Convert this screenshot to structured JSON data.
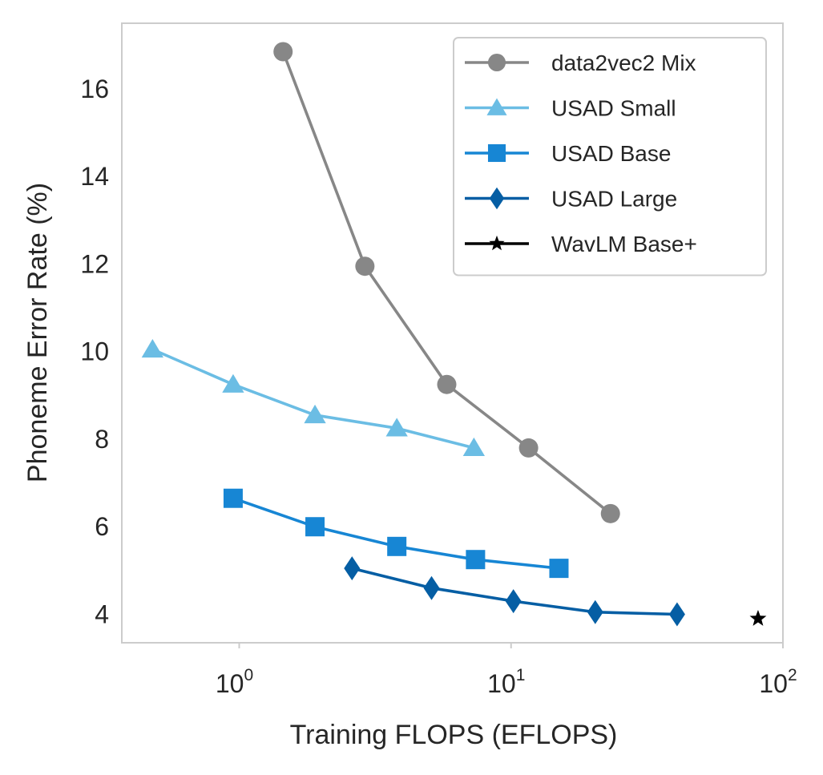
{
  "chart_data": {
    "type": "line",
    "title": "",
    "xlabel": "Training FLOPS (EFLOPS)",
    "ylabel": "Phoneme Error Rate (%)",
    "xscale": "log",
    "xlim": [
      0.37,
      100
    ],
    "ylim": [
      3.35,
      17.5
    ],
    "x_ticks": [
      {
        "base": "10",
        "exp": "0",
        "value": 1
      },
      {
        "base": "10",
        "exp": "1",
        "value": 10
      },
      {
        "base": "10",
        "exp": "2",
        "value": 100
      }
    ],
    "y_ticks": [
      {
        "label": "4",
        "value": 4
      },
      {
        "label": "6",
        "value": 6
      },
      {
        "label": "8",
        "value": 8
      },
      {
        "label": "10",
        "value": 10
      },
      {
        "label": "12",
        "value": 12
      },
      {
        "label": "14",
        "value": 14
      },
      {
        "label": "16",
        "value": 16
      }
    ],
    "grid": false,
    "legend_position": "top-right",
    "series": [
      {
        "name": "data2vec2 Mix",
        "marker": "circle",
        "color": "#878787",
        "x": [
          1.45,
          2.9,
          5.8,
          11.6,
          23.2
        ],
        "y": [
          16.85,
          11.95,
          9.25,
          7.8,
          6.3
        ]
      },
      {
        "name": "USAD Small",
        "marker": "triangle",
        "color": "#6bbde4",
        "x": [
          0.48,
          0.95,
          1.9,
          3.8,
          7.3
        ],
        "y": [
          10.05,
          9.25,
          8.55,
          8.25,
          7.8
        ]
      },
      {
        "name": "USAD Base",
        "marker": "square",
        "color": "#1786d4",
        "x": [
          0.95,
          1.9,
          3.8,
          7.4,
          15
        ],
        "y": [
          6.65,
          6.0,
          5.55,
          5.25,
          5.05
        ]
      },
      {
        "name": "USAD Large",
        "marker": "diamond",
        "color": "#055ea4",
        "x": [
          2.6,
          5.1,
          10.2,
          20.4,
          40.8
        ],
        "y": [
          5.05,
          4.6,
          4.3,
          4.05,
          4.0
        ]
      },
      {
        "name": "WavLM Base+",
        "marker": "star",
        "color": "#000000",
        "x": [
          81
        ],
        "y": [
          3.9
        ]
      }
    ]
  }
}
